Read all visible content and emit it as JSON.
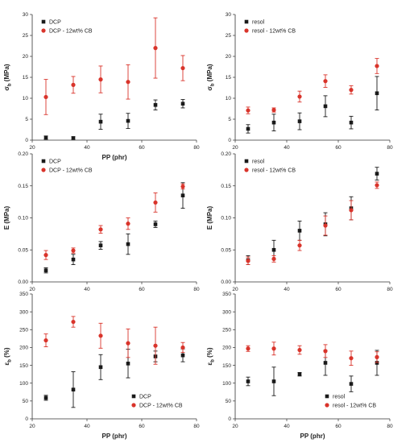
{
  "colors": {
    "black": "#1a1a1a",
    "red": "#d9342b"
  },
  "chart_data": [
    {
      "type": "scatter",
      "xlabel": "PP (phr)",
      "ylabel": "σb (MPa)",
      "ylabel_main": "σ",
      "ylabel_sub": "b",
      "ylabel_unit": " (MPa)",
      "xlim": [
        20,
        80
      ],
      "ylim": [
        0,
        30
      ],
      "xticks": [
        20,
        40,
        60,
        80
      ],
      "yticks": [
        0,
        5,
        10,
        15,
        20,
        25,
        30
      ],
      "xtick_labels": [
        "20",
        "40",
        "60",
        "80"
      ],
      "ytick_labels": [
        "0",
        "5",
        "10",
        "15",
        "20",
        "25",
        "30"
      ],
      "legend_pos": "top-left",
      "series": [
        {
          "name": "DCP",
          "color": "#1a1a1a",
          "x": [
            25,
            35,
            45,
            55,
            65,
            75
          ],
          "y": [
            0.6,
            0.5,
            4.4,
            4.6,
            8.4,
            8.7
          ],
          "err": [
            0.4,
            0.3,
            1.8,
            1.8,
            1.2,
            1.0
          ]
        },
        {
          "name": "DCP - 12wt% CB",
          "color": "#d9342b",
          "x": [
            25,
            35,
            45,
            55,
            65,
            75
          ],
          "y": [
            10.3,
            13.2,
            14.5,
            13.9,
            22.0,
            17.2
          ],
          "err": [
            4.2,
            2.0,
            3.2,
            4.1,
            7.2,
            3.0
          ]
        }
      ]
    },
    {
      "type": "scatter",
      "xlabel": "",
      "ylabel": "σb (MPa)",
      "ylabel_main": "σ",
      "ylabel_sub": "b",
      "ylabel_unit": " (MPa)",
      "xlim": [
        20,
        80
      ],
      "ylim": [
        0,
        30
      ],
      "xticks": [
        20,
        40,
        60,
        80
      ],
      "yticks": [
        0,
        5,
        10,
        15,
        20,
        25,
        30
      ],
      "xtick_labels": [
        "20",
        "40",
        "60",
        "80"
      ],
      "ytick_labels": [
        "0",
        "5",
        "10",
        "15",
        "20",
        "25",
        "30"
      ],
      "legend_pos": "top-left",
      "series": [
        {
          "name": "resol",
          "color": "#1a1a1a",
          "x": [
            25,
            35,
            45,
            55,
            65,
            75
          ],
          "y": [
            2.7,
            4.2,
            4.5,
            8.1,
            4.2,
            11.2
          ],
          "err": [
            1.0,
            2.0,
            2.0,
            2.5,
            1.5,
            4.0
          ]
        },
        {
          "name": "resol - 12wt% CB",
          "color": "#d9342b",
          "x": [
            25,
            35,
            45,
            55,
            65,
            75
          ],
          "y": [
            7.1,
            7.2,
            10.4,
            14.1,
            12.0,
            17.7
          ],
          "err": [
            0.8,
            0.5,
            1.3,
            1.5,
            1.0,
            1.8
          ]
        }
      ]
    },
    {
      "type": "scatter",
      "xlabel": "",
      "ylabel": "E (MPa)",
      "ylabel_main": "E (MPa)",
      "ylabel_sub": "",
      "ylabel_unit": "",
      "xlim": [
        20,
        80
      ],
      "ylim": [
        0,
        0.2
      ],
      "xticks": [
        20,
        40,
        60,
        80
      ],
      "yticks": [
        0,
        0.05,
        0.1,
        0.15,
        0.2
      ],
      "xtick_labels": [
        "20",
        "40",
        "60",
        "80"
      ],
      "ytick_labels": [
        "0.00",
        "0.05",
        "0.10",
        "0.15",
        "0.20"
      ],
      "legend_pos": "top-left",
      "series": [
        {
          "name": "DCP",
          "color": "#1a1a1a",
          "x": [
            25,
            35,
            45,
            55,
            65,
            75
          ],
          "y": [
            0.018,
            0.035,
            0.057,
            0.059,
            0.09,
            0.135
          ],
          "err": [
            0.004,
            0.008,
            0.006,
            0.016,
            0.005,
            0.02
          ]
        },
        {
          "name": "DCP - 12wt% CB",
          "color": "#d9342b",
          "x": [
            25,
            35,
            45,
            55,
            65,
            75
          ],
          "y": [
            0.042,
            0.049,
            0.082,
            0.091,
            0.124,
            0.149
          ],
          "err": [
            0.007,
            0.004,
            0.006,
            0.009,
            0.015,
            0.004
          ]
        }
      ]
    },
    {
      "type": "scatter",
      "xlabel": "",
      "ylabel": "E (MPa)",
      "ylabel_main": "E (MPa)",
      "ylabel_sub": "",
      "ylabel_unit": "",
      "xlim": [
        20,
        80
      ],
      "ylim": [
        0,
        0.2
      ],
      "xticks": [
        20,
        40,
        60,
        80
      ],
      "yticks": [
        0,
        0.05,
        0.1,
        0.15,
        0.2
      ],
      "xtick_labels": [
        "20",
        "40",
        "60",
        "80"
      ],
      "ytick_labels": [
        "0.00",
        "0.05",
        "0.10",
        "0.15",
        "0.20"
      ],
      "legend_pos": "top-left",
      "series": [
        {
          "name": "resol",
          "color": "#1a1a1a",
          "x": [
            25,
            35,
            45,
            55,
            65,
            75
          ],
          "y": [
            0.034,
            0.05,
            0.08,
            0.09,
            0.115,
            0.169
          ],
          "err": [
            0.007,
            0.015,
            0.015,
            0.018,
            0.018,
            0.01
          ]
        },
        {
          "name": "resol - 12wt% CB",
          "color": "#d9342b",
          "x": [
            25,
            35,
            45,
            55,
            65,
            75
          ],
          "y": [
            0.033,
            0.036,
            0.057,
            0.088,
            0.112,
            0.151
          ],
          "err": [
            0.006,
            0.005,
            0.008,
            0.015,
            0.015,
            0.005
          ]
        }
      ]
    },
    {
      "type": "scatter",
      "xlabel": "PP (phr)",
      "ylabel": "εb (%)",
      "ylabel_main": "ε",
      "ylabel_sub": "b",
      "ylabel_unit": " (%)",
      "xlim": [
        20,
        80
      ],
      "ylim": [
        0,
        350
      ],
      "xticks": [
        20,
        40,
        60,
        80
      ],
      "yticks": [
        0,
        50,
        100,
        150,
        200,
        250,
        300,
        350
      ],
      "xtick_labels": [
        "20",
        "40",
        "60",
        "80"
      ],
      "ytick_labels": [
        "0",
        "50",
        "100",
        "150",
        "200",
        "250",
        "300",
        "350"
      ],
      "legend_pos": "bottom-right",
      "series": [
        {
          "name": "DCP",
          "color": "#1a1a1a",
          "x": [
            25,
            35,
            45,
            55,
            65,
            75
          ],
          "y": [
            59,
            82,
            145,
            155,
            175,
            178
          ],
          "err": [
            7,
            50,
            35,
            40,
            15,
            18
          ]
        },
        {
          "name": "DCP - 12wt% CB",
          "color": "#d9342b",
          "x": [
            25,
            35,
            45,
            55,
            65,
            75
          ],
          "y": [
            220,
            272,
            233,
            212,
            205,
            200
          ],
          "err": [
            18,
            15,
            35,
            40,
            52,
            14
          ]
        }
      ]
    },
    {
      "type": "scatter",
      "xlabel": "PP (phr)",
      "ylabel": "εb (%)",
      "ylabel_main": "ε",
      "ylabel_sub": "b",
      "ylabel_unit": " (%)",
      "xlim": [
        20,
        80
      ],
      "ylim": [
        0,
        350
      ],
      "xticks": [
        20,
        40,
        60,
        80
      ],
      "yticks": [
        0,
        50,
        100,
        150,
        200,
        250,
        300,
        350
      ],
      "xtick_labels": [
        "20",
        "40",
        "60",
        "80"
      ],
      "ytick_labels": [
        "0",
        "50",
        "100",
        "150",
        "200",
        "250",
        "300",
        "350"
      ],
      "legend_pos": "bottom-right",
      "series": [
        {
          "name": "resol",
          "color": "#1a1a1a",
          "x": [
            25,
            35,
            45,
            55,
            65,
            75
          ],
          "y": [
            105,
            105,
            125,
            157,
            98,
            157
          ],
          "err": [
            12,
            40,
            5,
            35,
            22,
            35
          ]
        },
        {
          "name": "resol - 12wt% CB",
          "color": "#d9342b",
          "x": [
            25,
            35,
            45,
            55,
            65,
            75
          ],
          "y": [
            197,
            197,
            193,
            190,
            170,
            173
          ],
          "err": [
            8,
            18,
            12,
            18,
            20,
            15
          ]
        }
      ]
    }
  ]
}
